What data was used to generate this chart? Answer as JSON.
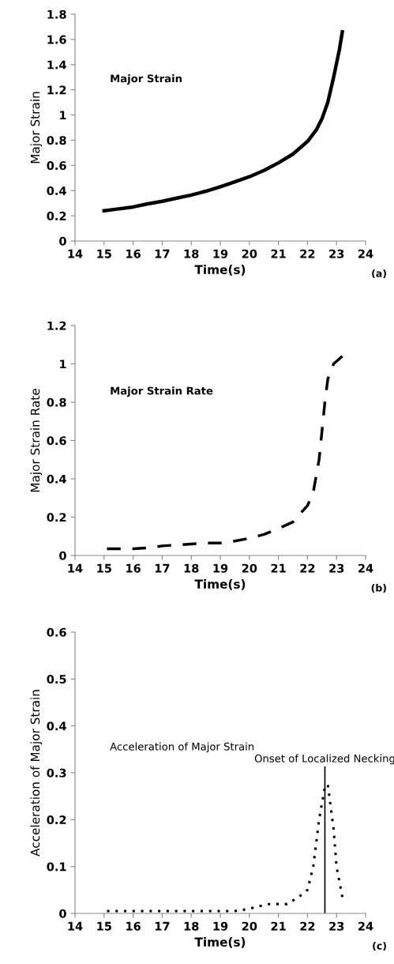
{
  "chart_data": [
    {
      "type": "line",
      "xlabel": "Time(s)",
      "ylabel": "Major Strain",
      "annotations": [
        "Major Strain",
        "(a)"
      ],
      "xlim": [
        14,
        24
      ],
      "xticks": [
        14,
        15,
        16,
        17,
        18,
        19,
        20,
        21,
        22,
        23,
        24
      ],
      "ylim": [
        0,
        1.8
      ],
      "yticks": [
        0,
        {
          "value": 0.2,
          "label": "0.2"
        },
        {
          "value": 0.4,
          "label": "0.4"
        },
        {
          "value": 0.6,
          "label": "0.6"
        },
        {
          "value": 0.8,
          "label": "0.8"
        },
        1,
        {
          "value": 1.2,
          "label": "1.2"
        },
        {
          "value": 1.4,
          "label": "1.4"
        },
        {
          "value": 1.6,
          "label": "1.6"
        },
        {
          "value": 1.8,
          "label": "1.8"
        }
      ],
      "grid": false,
      "line_style": "solid",
      "series": [
        {
          "color": "#000000",
          "x": [
            15,
            15.5,
            16,
            16.5,
            17,
            17.5,
            18,
            18.5,
            19,
            19.5,
            20,
            20.5,
            21,
            21.5,
            22,
            22.3,
            22.5,
            22.7,
            22.9,
            23.1,
            23.2
          ],
          "values": [
            0.24,
            0.255,
            0.27,
            0.295,
            0.315,
            0.34,
            0.365,
            0.395,
            0.43,
            0.47,
            0.51,
            0.56,
            0.62,
            0.69,
            0.79,
            0.88,
            0.97,
            1.1,
            1.3,
            1.52,
            1.66
          ]
        }
      ]
    },
    {
      "type": "line",
      "xlabel": "Time(s)",
      "ylabel": "Major Strain Rate",
      "annotations": [
        "Major Strain Rate",
        "(b)"
      ],
      "xlim": [
        14,
        24
      ],
      "xticks": [
        14,
        15,
        16,
        17,
        18,
        19,
        20,
        21,
        22,
        23,
        24
      ],
      "ylim": [
        0,
        1.2
      ],
      "yticks": [
        0,
        {
          "value": 0.2,
          "label": "0.2"
        },
        {
          "value": 0.4,
          "label": "0.4"
        },
        {
          "value": 0.6,
          "label": "0.6"
        },
        {
          "value": 0.8,
          "label": "0.8"
        },
        1,
        {
          "value": 1.2,
          "label": "1.2"
        }
      ],
      "grid": false,
      "line_style": "dashed",
      "series": [
        {
          "color": "#000000",
          "x": [
            15.1,
            15.5,
            16,
            16.5,
            17,
            17.5,
            18,
            18.5,
            19,
            19.5,
            20,
            20.5,
            21,
            21.5,
            22,
            22.2,
            22.4,
            22.5,
            22.6,
            22.7,
            22.9,
            23.2
          ],
          "values": [
            0.035,
            0.035,
            0.035,
            0.04,
            0.05,
            0.055,
            0.06,
            0.065,
            0.065,
            0.075,
            0.09,
            0.11,
            0.14,
            0.175,
            0.26,
            0.33,
            0.5,
            0.65,
            0.8,
            0.92,
            1.0,
            1.04
          ]
        }
      ]
    },
    {
      "type": "line",
      "xlabel": "Time(s)",
      "ylabel": "Acceleration of Major Strain",
      "annotations": [
        "Acceleration of Major Strain",
        "(c)"
      ],
      "xlim": [
        14,
        24
      ],
      "xticks": [
        14,
        15,
        16,
        17,
        18,
        19,
        20,
        21,
        22,
        23,
        24
      ],
      "ylim": [
        0,
        0.6
      ],
      "yticks": [
        0,
        {
          "value": 0.1,
          "label": "0.1"
        },
        {
          "value": 0.2,
          "label": "0.2"
        },
        {
          "value": 0.3,
          "label": "0.3"
        },
        {
          "value": 0.4,
          "label": "0.4"
        },
        {
          "value": 0.5,
          "label": "0.5"
        },
        {
          "value": 0.6,
          "label": "0.6"
        }
      ],
      "grid": false,
      "line_style": "dotted",
      "ref_lines": [
        {
          "axis": "x",
          "value": 22.6,
          "label": "Onset of Localized Necking",
          "color": "#000000",
          "line_style": "solid"
        }
      ],
      "series": [
        {
          "color": "#000000",
          "x": [
            15.1,
            16,
            17,
            18,
            19,
            19.5,
            20,
            20.3,
            20.7,
            21,
            21.3,
            21.7,
            22,
            22.2,
            22.4,
            22.6,
            22.7,
            22.9,
            23.0,
            23.2
          ],
          "values": [
            0.005,
            0.005,
            0.005,
            0.005,
            0.005,
            0.005,
            0.01,
            0.015,
            0.02,
            0.02,
            0.02,
            0.035,
            0.05,
            0.1,
            0.2,
            0.27,
            0.275,
            0.18,
            0.1,
            0.035
          ]
        }
      ]
    }
  ]
}
